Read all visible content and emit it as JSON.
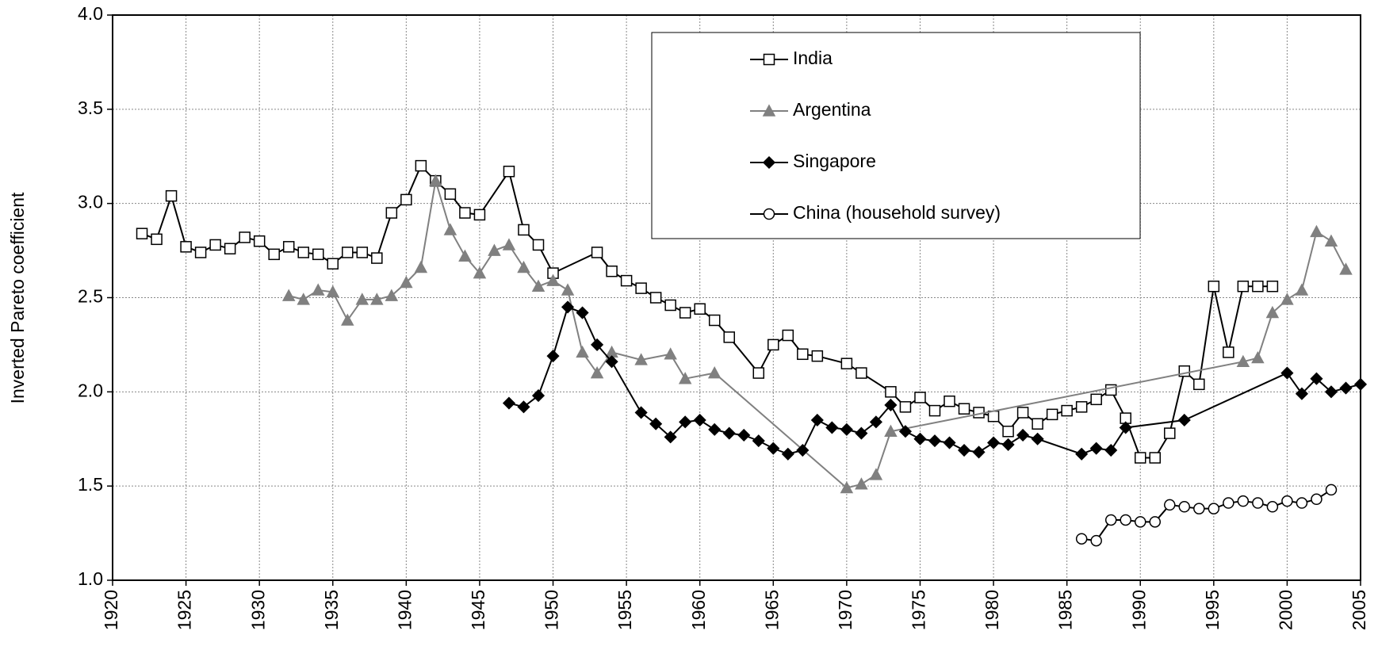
{
  "chart_data": {
    "type": "line",
    "y_label": "Inverted Pareto coefficient",
    "xlim": [
      1920,
      2005
    ],
    "xticks": [
      1920,
      1925,
      1930,
      1935,
      1940,
      1945,
      1950,
      1955,
      1960,
      1965,
      1970,
      1975,
      1980,
      1985,
      1990,
      1995,
      2000,
      2005
    ],
    "ylim": [
      1,
      4
    ],
    "yticks": [
      {
        "value": 1,
        "label": "1.0"
      },
      1.5,
      {
        "value": 2,
        "label": "2.0"
      },
      2.5,
      {
        "value": 3,
        "label": "3.0"
      },
      3.5,
      {
        "value": 4,
        "label": "4.0"
      }
    ],
    "grid": true,
    "legend": "top-center",
    "series": [
      {
        "name": "India",
        "color": "#000000",
        "marker": "square",
        "x": [
          1922,
          1923,
          1924,
          1925,
          1926,
          1927,
          1928,
          1929,
          1930,
          1931,
          1932,
          1933,
          1934,
          1935,
          1936,
          1937,
          1938,
          1939,
          1940,
          1941,
          1942,
          1943,
          1944,
          1945,
          1947,
          1948,
          1949,
          1950,
          1953,
          1954,
          1955,
          1956,
          1957,
          1958,
          1959,
          1960,
          1961,
          1962,
          1964,
          1965,
          1966,
          1967,
          1968,
          1970,
          1971,
          1973,
          1974,
          1975,
          1976,
          1977,
          1978,
          1979,
          1980,
          1981,
          1982,
          1983,
          1984,
          1985,
          1986,
          1987,
          1988,
          1989,
          1990,
          1991,
          1992,
          1993,
          1994,
          1995,
          1996,
          1997,
          1998,
          1999
        ],
        "values": [
          2.84,
          2.81,
          3.04,
          2.77,
          2.74,
          2.78,
          2.76,
          2.82,
          2.8,
          2.73,
          2.77,
          2.74,
          2.73,
          2.68,
          2.74,
          2.74,
          2.71,
          2.95,
          3.02,
          3.2,
          3.12,
          3.05,
          2.95,
          2.94,
          3.17,
          2.86,
          2.78,
          2.63,
          2.74,
          2.64,
          2.59,
          2.55,
          2.5,
          2.46,
          2.42,
          2.44,
          2.38,
          2.29,
          2.1,
          2.25,
          2.3,
          2.2,
          2.19,
          2.15,
          2.1,
          2.0,
          1.92,
          1.97,
          1.9,
          1.95,
          1.91,
          1.89,
          1.87,
          1.79,
          1.89,
          1.83,
          1.88,
          1.9,
          1.92,
          1.96,
          2.01,
          1.86,
          1.65,
          1.65,
          1.78,
          2.11,
          2.04,
          2.56,
          2.21,
          2.56,
          2.56,
          2.56
        ]
      },
      {
        "name": "Argentina",
        "color": "#808080",
        "marker": "triangle",
        "x": [
          1932,
          1933,
          1934,
          1935,
          1936,
          1937,
          1938,
          1939,
          1940,
          1941,
          1942,
          1943,
          1944,
          1945,
          1946,
          1947,
          1948,
          1949,
          1950,
          1951,
          1952,
          1953,
          1954,
          1956,
          1958,
          1959,
          1961,
          1970,
          1971,
          1972,
          1973,
          1997,
          1998,
          1999,
          2000,
          2001,
          2002,
          2003,
          2004
        ],
        "values": [
          2.51,
          2.49,
          2.54,
          2.53,
          2.38,
          2.49,
          2.49,
          2.51,
          2.58,
          2.66,
          3.12,
          2.86,
          2.72,
          2.63,
          2.75,
          2.78,
          2.66,
          2.56,
          2.59,
          2.54,
          2.21,
          2.1,
          2.21,
          2.17,
          2.2,
          2.07,
          2.1,
          1.49,
          1.51,
          1.56,
          1.79,
          2.16,
          2.18,
          2.42,
          2.49,
          2.54,
          2.85,
          2.8,
          2.65
        ]
      },
      {
        "name": "Singapore",
        "color": "#000000",
        "marker": "diamond",
        "x": [
          1947,
          1948,
          1949,
          1950,
          1951,
          1952,
          1953,
          1954,
          1956,
          1957,
          1958,
          1959,
          1960,
          1961,
          1962,
          1963,
          1964,
          1965,
          1966,
          1967,
          1968,
          1969,
          1970,
          1971,
          1972,
          1973,
          1974,
          1975,
          1976,
          1977,
          1978,
          1979,
          1980,
          1981,
          1982,
          1983,
          1986,
          1987,
          1988,
          1989,
          1993,
          2000,
          2001,
          2002,
          2003,
          2004,
          2005
        ],
        "values": [
          1.94,
          1.92,
          1.98,
          2.19,
          2.45,
          2.42,
          2.25,
          2.16,
          1.89,
          1.83,
          1.76,
          1.84,
          1.85,
          1.8,
          1.78,
          1.77,
          1.74,
          1.7,
          1.67,
          1.69,
          1.85,
          1.81,
          1.8,
          1.78,
          1.84,
          1.93,
          1.79,
          1.75,
          1.74,
          1.73,
          1.69,
          1.68,
          1.73,
          1.72,
          1.77,
          1.75,
          1.67,
          1.7,
          1.69,
          1.81,
          1.85,
          2.1,
          1.99,
          2.07,
          2.0,
          2.02,
          2.04
        ]
      },
      {
        "name": "China (household survey)",
        "color": "#000000",
        "marker": "circle",
        "x": [
          1986,
          1987,
          1988,
          1989,
          1990,
          1991,
          1992,
          1993,
          1994,
          1995,
          1996,
          1997,
          1998,
          1999,
          2000,
          2001,
          2002,
          2003
        ],
        "values": [
          1.22,
          1.21,
          1.32,
          1.32,
          1.31,
          1.31,
          1.4,
          1.39,
          1.38,
          1.38,
          1.41,
          1.42,
          1.41,
          1.39,
          1.42,
          1.41,
          1.43,
          1.48
        ]
      }
    ]
  }
}
